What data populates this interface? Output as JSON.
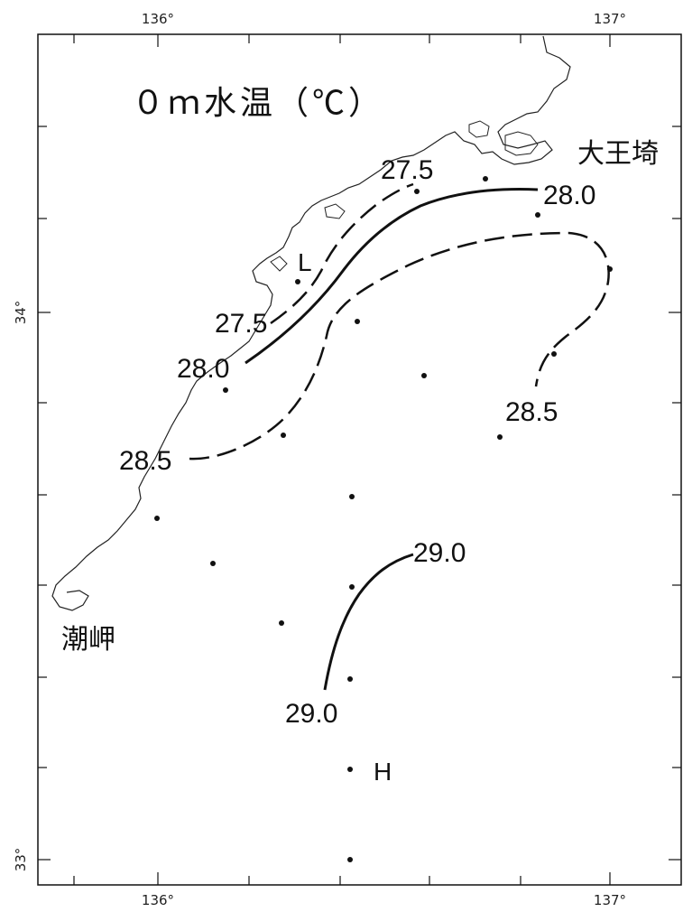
{
  "title": "０ｍ水温（℃）",
  "axes": {
    "top_ticks": [
      "136°",
      "137°"
    ],
    "bottom_ticks": [
      "136°",
      "137°"
    ],
    "left_ticks": [
      "34°",
      "33°"
    ]
  },
  "places": {
    "cape_east": "大王埼",
    "cape_west": "潮岬"
  },
  "markers": {
    "low": "L",
    "high": "H"
  },
  "isotherm_labels": {
    "t275_north": "27.5",
    "t275_south": "27.5",
    "t280_east": "28.0",
    "t280_west": "28.0",
    "t285_east": "28.5",
    "t285_west": "28.5",
    "t290_north": "29.0",
    "t290_south": "29.0"
  }
}
